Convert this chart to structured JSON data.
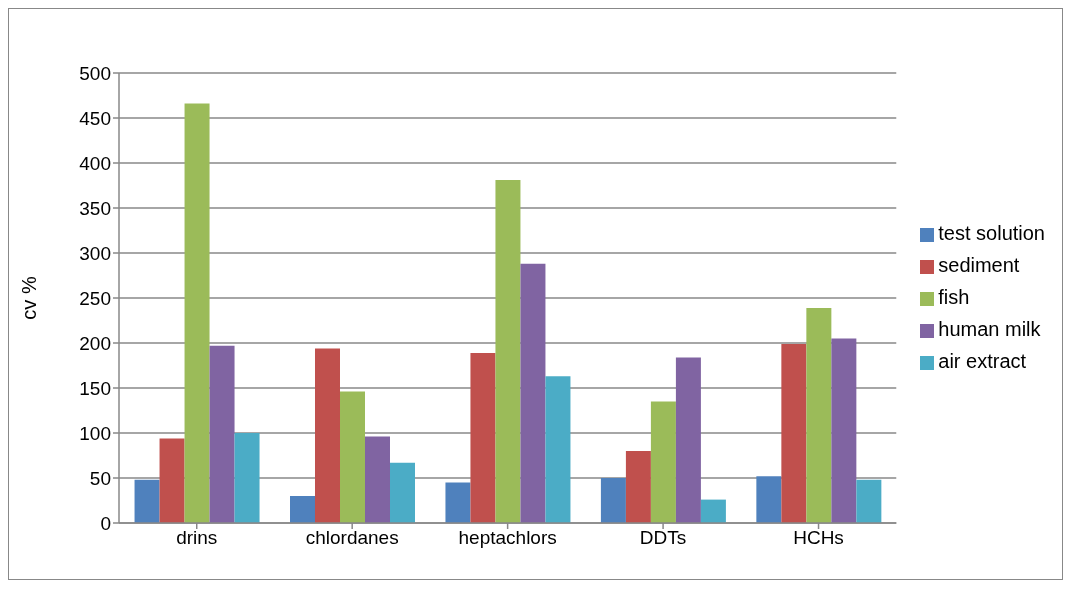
{
  "chart_data": {
    "type": "bar",
    "ylabel": "cv %",
    "categories": [
      "drins",
      "chlordanes",
      "heptachlors",
      "DDTs",
      "HCHs"
    ],
    "series": [
      {
        "name": "test solution",
        "color": "#4f81bd",
        "values": [
          48,
          30,
          45,
          50,
          52
        ]
      },
      {
        "name": "sediment",
        "color": "#c0504d",
        "values": [
          94,
          194,
          189,
          80,
          199
        ]
      },
      {
        "name": "fish",
        "color": "#9bbb59",
        "values": [
          466,
          146,
          381,
          135,
          239
        ]
      },
      {
        "name": "human milk",
        "color": "#8064a2",
        "values": [
          197,
          96,
          288,
          184,
          205
        ]
      },
      {
        "name": "air extract",
        "color": "#4bacc6",
        "values": [
          100,
          67,
          163,
          26,
          48
        ]
      }
    ],
    "ylim": [
      0,
      500
    ],
    "yticks": [
      0,
      50,
      100,
      150,
      200,
      250,
      300,
      350,
      400,
      450,
      500
    ],
    "grid": "y",
    "legend": "right"
  }
}
